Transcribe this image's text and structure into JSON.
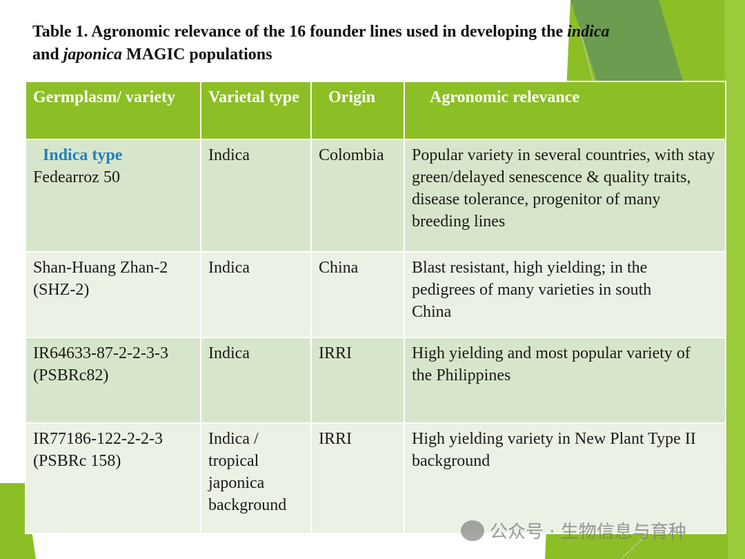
{
  "title": {
    "part1": "Table 1. Agronomic relevance of the 16 founder lines used in developing  the ",
    "italic1": "indica",
    "part2": " and ",
    "italic2": "japonica",
    "part3": " MAGIC populations"
  },
  "table": {
    "headers": [
      "Germplasm/ variety",
      "Varietal type",
      "Origin",
      "Agronomic relevance"
    ],
    "section_label": "Indica type",
    "rows": [
      {
        "variety": "Fedearroz 50",
        "type": "Indica",
        "origin": "Colombia",
        "relevance": "Popular variety in several countries, with stay green/delayed senescence & quality traits, disease tolerance, progenitor of many breeding lines"
      },
      {
        "variety": "Shan-Huang Zhan-2 (SHZ-2)",
        "type": "Indica",
        "origin": "China",
        "relevance": "Blast resistant, high yielding; in the pedigrees of many varieties in south China"
      },
      {
        "variety": "IR64633-87-2-2-3-3 (PSBRc82)",
        "type": "Indica",
        "origin": "IRRI",
        "relevance": "High yielding and most popular variety of the Philippines"
      },
      {
        "variety": "IR77186-122-2-2-3 (PSBRc 158)",
        "type": "Indica / tropical japonica background",
        "origin": "IRRI",
        "relevance": "High yielding variety in New Plant Type II background"
      }
    ]
  },
  "watermark": {
    "text": "公众号 · 生物信息与育种",
    "icon": "wechat-icon"
  },
  "colors": {
    "header": "#8cbf26",
    "row_dark": "#d7e6ca",
    "row_light": "#ebf1e5",
    "section_label": "#1f7fc4"
  }
}
